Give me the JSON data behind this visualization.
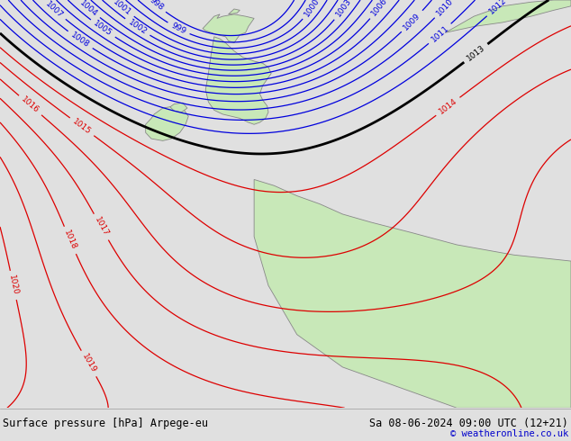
{
  "title_left": "Surface pressure [hPa] Arpege-eu",
  "title_right": "Sa 08-06-2024 09:00 UTC (12+21)",
  "copyright": "© weatheronline.co.uk",
  "bg_color": "#e0e0e0",
  "land_color": "#c8e8b8",
  "border_color": "#888888",
  "font_color_title": "#000000",
  "font_color_copyright": "#0000cc",
  "isobar_blue_color": "#0000dd",
  "isobar_red_color": "#dd0000",
  "isobar_black_color": "#000000",
  "figsize": [
    6.34,
    4.9
  ],
  "dpi": 100
}
